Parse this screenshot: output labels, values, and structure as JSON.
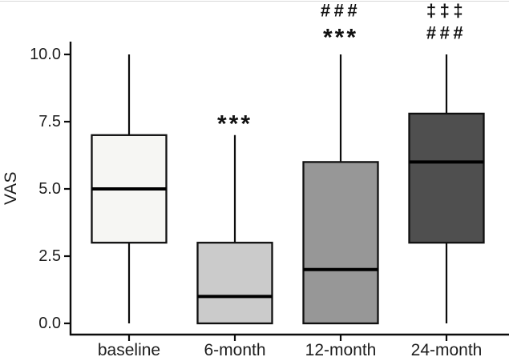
{
  "window": {
    "background": "#ffffff",
    "top_border_color": "#d9d9d9"
  },
  "chart_data": {
    "type": "boxplot",
    "title": "",
    "xlabel": "",
    "ylabel": "VAS",
    "ylim": [
      0,
      10
    ],
    "y_tick_values": [
      0,
      2.5,
      5,
      7.5,
      10
    ],
    "y_tick_labels": [
      "0.0",
      "2.5",
      "5.0",
      "7.5",
      "10.0"
    ],
    "grid": "off",
    "legend": "none",
    "categories": [
      "baseline",
      "6-month",
      "12-month",
      "24-month"
    ],
    "series": [
      {
        "category": "baseline",
        "whisker_low": 0,
        "q1": 3,
        "median": 5,
        "q3": 7,
        "whisker_high": 10,
        "fill": "#f6f6f3",
        "annotations": []
      },
      {
        "category": "6-month",
        "whisker_low": 0,
        "q1": 0,
        "median": 1,
        "q3": 3,
        "whisker_high": 7,
        "fill": "#cbcbcb",
        "annotations": [
          "***"
        ]
      },
      {
        "category": "12-month",
        "whisker_low": 0,
        "q1": 0,
        "median": 2,
        "q3": 6,
        "whisker_high": 10,
        "fill": "#979797",
        "annotations": [
          "###",
          "***"
        ]
      },
      {
        "category": "24-month",
        "whisker_low": 0,
        "q1": 3,
        "median": 6,
        "q3": 7.8,
        "whisker_high": 10,
        "fill": "#4f4f4f",
        "annotations": [
          "‡‡‡",
          "###"
        ]
      }
    ],
    "box_border_color": "#101010",
    "median_color": "#000000",
    "axis_color": "#0c0c0c",
    "text_color": "#1d1d1d",
    "annotation_color": "#111111"
  }
}
